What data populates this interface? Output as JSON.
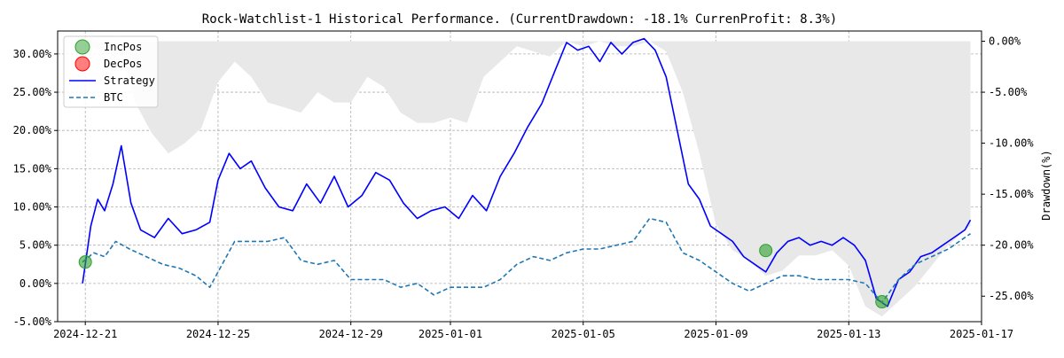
{
  "chart_data": {
    "type": "line",
    "title": "Rock-Watchlist-1 Historical Performance. (CurrentDrawdown: -18.1% CurrenProfit: 8.3%)",
    "xlabel": "",
    "ylabel_left": "",
    "ylabel_right": "Drawdown(%)",
    "x_range": [
      "2024-12-20 04:00",
      "2025-01-17 00:00"
    ],
    "ylim_left": [
      -5.0,
      33.0
    ],
    "ylim_right": [
      -27.5,
      1.0
    ],
    "grid": true,
    "legend_position": "top-left",
    "x_ticks": [
      "2024-12-21",
      "2024-12-25",
      "2024-12-29",
      "2025-01-01",
      "2025-01-05",
      "2025-01-09",
      "2025-01-13",
      "2025-01-17"
    ],
    "y_ticks_left": [
      "-5.00%",
      "0.00%",
      "5.00%",
      "10.00%",
      "15.00%",
      "20.00%",
      "25.00%",
      "30.00%"
    ],
    "y_ticks_right": [
      "0.00%",
      "-5.00%",
      "-10.00%",
      "-15.00%",
      "-20.00%",
      "-25.00%"
    ],
    "legend": [
      {
        "label": "IncPos",
        "kind": "marker",
        "color": "#2ca02c"
      },
      {
        "label": "DecPos",
        "kind": "marker",
        "color": "#ff0000"
      },
      {
        "label": "Strategy",
        "kind": "solid",
        "color": "#0000ff"
      },
      {
        "label": "BTC",
        "kind": "dashed",
        "color": "#1f77b4"
      }
    ],
    "series": [
      {
        "name": "Strategy",
        "axis": "left",
        "color": "#0000ff",
        "x": [
          "2024-12-20 22:00",
          "2024-12-21 04:00",
          "2024-12-21 09:00",
          "2024-12-21 14:00",
          "2024-12-21 20:00",
          "2024-12-22 02:00",
          "2024-12-22 09:00",
          "2024-12-22 16:00",
          "2024-12-23 02:00",
          "2024-12-23 12:00",
          "2024-12-23 22:00",
          "2024-12-24 08:00",
          "2024-12-24 18:00",
          "2024-12-25 00:00",
          "2024-12-25 08:00",
          "2024-12-25 16:00",
          "2024-12-26 00:00",
          "2024-12-26 10:00",
          "2024-12-26 20:00",
          "2024-12-27 06:00",
          "2024-12-27 16:00",
          "2024-12-28 02:00",
          "2024-12-28 12:00",
          "2024-12-28 22:00",
          "2024-12-29 08:00",
          "2024-12-29 18:00",
          "2024-12-30 04:00",
          "2024-12-30 14:00",
          "2024-12-31 00:00",
          "2024-12-31 10:00",
          "2024-12-31 20:00",
          "2025-01-01 06:00",
          "2025-01-01 16:00",
          "2025-01-02 02:00",
          "2025-01-02 12:00",
          "2025-01-02 22:00",
          "2025-01-03 08:00",
          "2025-01-03 18:00",
          "2025-01-04 04:00",
          "2025-01-04 12:00",
          "2025-01-04 20:00",
          "2025-01-05 04:00",
          "2025-01-05 12:00",
          "2025-01-05 20:00",
          "2025-01-06 04:00",
          "2025-01-06 12:00",
          "2025-01-06 20:00",
          "2025-01-07 04:00",
          "2025-01-07 12:00",
          "2025-01-07 20:00",
          "2025-01-08 04:00",
          "2025-01-08 12:00",
          "2025-01-08 20:00",
          "2025-01-09 04:00",
          "2025-01-09 12:00",
          "2025-01-09 20:00",
          "2025-01-10 04:00",
          "2025-01-10 12:00",
          "2025-01-10 20:00",
          "2025-01-11 04:00",
          "2025-01-11 12:00",
          "2025-01-11 20:00",
          "2025-01-12 04:00",
          "2025-01-12 12:00",
          "2025-01-12 20:00",
          "2025-01-13 04:00",
          "2025-01-13 12:00",
          "2025-01-13 20:00",
          "2025-01-14 04:00",
          "2025-01-14 12:00",
          "2025-01-14 20:00",
          "2025-01-15 04:00",
          "2025-01-15 12:00",
          "2025-01-15 20:00",
          "2025-01-16 04:00",
          "2025-01-16 12:00",
          "2025-01-16 16:00"
        ],
        "values": [
          0.0,
          7.5,
          11.0,
          9.5,
          13.0,
          18.0,
          10.5,
          7.0,
          6.0,
          8.5,
          6.5,
          7.0,
          8.0,
          13.5,
          17.0,
          15.0,
          16.0,
          12.5,
          10.0,
          9.5,
          13.0,
          10.5,
          14.0,
          10.0,
          11.5,
          14.5,
          13.5,
          10.5,
          8.5,
          9.5,
          10.0,
          8.5,
          11.5,
          9.5,
          14.0,
          17.0,
          20.5,
          23.5,
          28.0,
          31.5,
          30.5,
          31.0,
          29.0,
          31.5,
          30.0,
          31.5,
          32.0,
          30.5,
          27.0,
          20.0,
          13.0,
          11.0,
          7.5,
          6.5,
          5.5,
          3.5,
          2.5,
          1.5,
          4.0,
          5.5,
          6.0,
          5.0,
          5.5,
          5.0,
          6.0,
          5.0,
          3.0,
          -2.0,
          -3.0,
          0.5,
          1.5,
          3.5,
          4.0,
          5.0,
          6.0,
          7.0,
          8.3
        ]
      },
      {
        "name": "BTC",
        "axis": "left",
        "color": "#1f77b4",
        "x": [
          "2024-12-20 22:00",
          "2024-12-21 06:00",
          "2024-12-21 14:00",
          "2024-12-21 22:00",
          "2024-12-22 08:00",
          "2024-12-22 20:00",
          "2024-12-23 08:00",
          "2024-12-23 20:00",
          "2024-12-24 08:00",
          "2024-12-24 18:00",
          "2024-12-25 00:00",
          "2024-12-25 12:00",
          "2024-12-26 00:00",
          "2024-12-26 12:00",
          "2024-12-27 00:00",
          "2024-12-27 12:00",
          "2024-12-28 00:00",
          "2024-12-28 12:00",
          "2024-12-29 00:00",
          "2024-12-29 12:00",
          "2024-12-30 00:00",
          "2024-12-30 12:00",
          "2024-12-31 00:00",
          "2024-12-31 12:00",
          "2025-01-01 00:00",
          "2025-01-01 12:00",
          "2025-01-02 00:00",
          "2025-01-02 12:00",
          "2025-01-03 00:00",
          "2025-01-03 12:00",
          "2025-01-04 00:00",
          "2025-01-04 12:00",
          "2025-01-05 00:00",
          "2025-01-05 12:00",
          "2025-01-06 00:00",
          "2025-01-06 12:00",
          "2025-01-07 00:00",
          "2025-01-07 12:00",
          "2025-01-08 00:00",
          "2025-01-08 12:00",
          "2025-01-09 00:00",
          "2025-01-09 12:00",
          "2025-01-10 00:00",
          "2025-01-10 12:00",
          "2025-01-11 00:00",
          "2025-01-11 12:00",
          "2025-01-12 00:00",
          "2025-01-12 12:00",
          "2025-01-13 00:00",
          "2025-01-13 12:00",
          "2025-01-14 00:00",
          "2025-01-14 12:00",
          "2025-01-15 00:00",
          "2025-01-15 12:00",
          "2025-01-16 00:00",
          "2025-01-16 16:00"
        ],
        "values": [
          2.8,
          4.0,
          3.5,
          5.5,
          4.5,
          3.5,
          2.5,
          2.0,
          1.0,
          -0.5,
          1.5,
          5.5,
          5.5,
          5.5,
          6.0,
          3.0,
          2.5,
          3.0,
          0.5,
          0.5,
          0.5,
          -0.5,
          0.0,
          -1.5,
          -0.5,
          -0.5,
          -0.5,
          0.5,
          2.5,
          3.5,
          3.0,
          4.0,
          4.5,
          4.5,
          5.0,
          5.5,
          8.5,
          8.0,
          4.0,
          3.0,
          1.5,
          0.0,
          -1.0,
          0.0,
          1.0,
          1.0,
          0.5,
          0.5,
          0.5,
          0.0,
          -2.5,
          0.5,
          2.5,
          3.5,
          4.5,
          6.5
        ]
      },
      {
        "name": "Drawdown",
        "axis": "right",
        "color": "#e8e8e8",
        "x": [
          "2024-12-20 22:00",
          "2024-12-21 12:00",
          "2024-12-22 00:00",
          "2024-12-22 12:00",
          "2024-12-23 00:00",
          "2024-12-23 12:00",
          "2024-12-24 00:00",
          "2024-12-24 12:00",
          "2024-12-25 00:00",
          "2024-12-25 12:00",
          "2024-12-26 00:00",
          "2024-12-26 12:00",
          "2024-12-27 00:00",
          "2024-12-27 12:00",
          "2024-12-28 00:00",
          "2024-12-28 12:00",
          "2024-12-29 00:00",
          "2024-12-29 12:00",
          "2024-12-30 00:00",
          "2024-12-30 12:00",
          "2024-12-31 00:00",
          "2024-12-31 12:00",
          "2025-01-01 00:00",
          "2025-01-01 12:00",
          "2025-01-02 00:00",
          "2025-01-02 12:00",
          "2025-01-03 00:00",
          "2025-01-03 12:00",
          "2025-01-04 00:00",
          "2025-01-04 12:00",
          "2025-01-05 00:00",
          "2025-01-05 12:00",
          "2025-01-06 00:00",
          "2025-01-06 12:00",
          "2025-01-07 00:00",
          "2025-01-07 12:00",
          "2025-01-08 00:00",
          "2025-01-08 12:00",
          "2025-01-09 00:00",
          "2025-01-09 12:00",
          "2025-01-10 00:00",
          "2025-01-10 12:00",
          "2025-01-11 00:00",
          "2025-01-11 12:00",
          "2025-01-12 00:00",
          "2025-01-12 12:00",
          "2025-01-13 00:00",
          "2025-01-13 12:00",
          "2025-01-14 00:00",
          "2025-01-14 12:00",
          "2025-01-15 00:00",
          "2025-01-15 12:00",
          "2025-01-16 00:00",
          "2025-01-16 16:00"
        ],
        "values": [
          0.0,
          -1.0,
          0.0,
          -6.0,
          -9.0,
          -11.0,
          -10.0,
          -8.5,
          -4.0,
          -2.0,
          -3.5,
          -6.0,
          -6.5,
          -7.0,
          -5.0,
          -6.0,
          -6.0,
          -3.5,
          -4.5,
          -7.0,
          -8.0,
          -8.0,
          -7.5,
          -8.0,
          -3.5,
          -2.0,
          -0.5,
          -1.0,
          -1.5,
          0.0,
          -0.5,
          0.0,
          -0.5,
          -0.5,
          0.0,
          -1.0,
          -5.0,
          -11.0,
          -18.0,
          -20.5,
          -21.5,
          -23.0,
          -22.5,
          -21.0,
          -21.0,
          -20.5,
          -22.0,
          -26.0,
          -27.0,
          -25.5,
          -24.0,
          -22.0,
          -20.0,
          -18.1
        ]
      }
    ],
    "markers": [
      {
        "type": "IncPos",
        "x": "2024-12-21 00:00",
        "value": 2.8
      },
      {
        "type": "IncPos",
        "x": "2025-01-10 12:00",
        "value": 4.3
      },
      {
        "type": "IncPos",
        "x": "2025-01-14 00:00",
        "value": -2.4
      }
    ]
  }
}
